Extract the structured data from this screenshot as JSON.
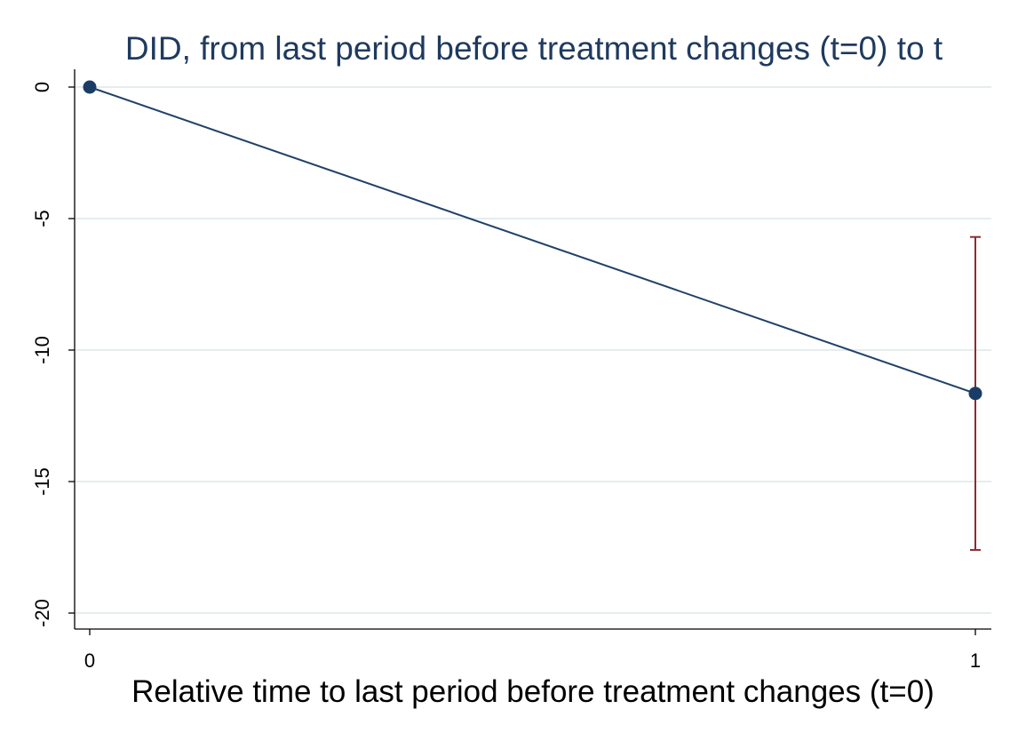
{
  "chart_data": {
    "type": "line",
    "title": "DID, from last period before treatment changes (t=0) to t",
    "xlabel": "Relative time to last period before treatment changes (t=0)",
    "ylabel": "",
    "x": [
      0,
      1
    ],
    "xticks": [
      "0",
      "1"
    ],
    "xlim": [
      0,
      1
    ],
    "yticks": [
      "0",
      "-5",
      "-10",
      "-15",
      "-20"
    ],
    "ylim": [
      -20,
      0
    ],
    "series": [
      {
        "values": [
          0,
          -11.65
        ],
        "ci_lower": [
          null,
          -17.6
        ],
        "ci_upper": [
          null,
          -5.7
        ]
      }
    ],
    "grid": true,
    "colors": {
      "line": "#1f4168",
      "marker": "#1a3d66",
      "errorbar": "#8b2c32",
      "grid": "#e6ecef",
      "title": "#1e3a5f"
    }
  }
}
